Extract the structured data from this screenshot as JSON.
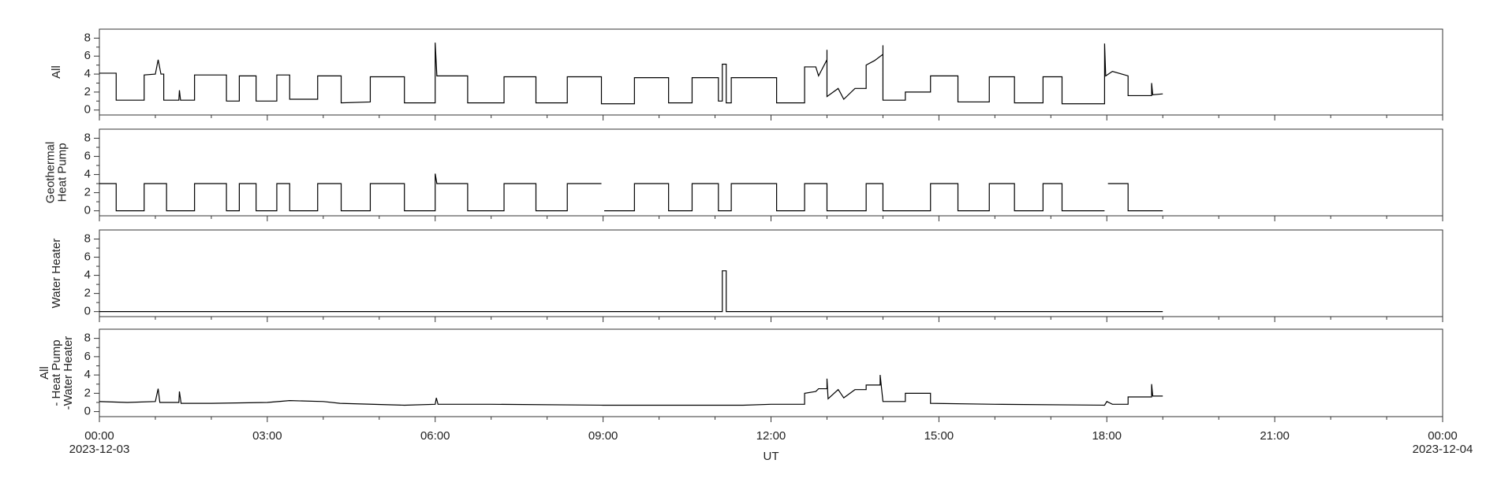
{
  "x_axis": {
    "label": "UT",
    "xlim": [
      0,
      24
    ],
    "xticks": [
      {
        "value": 0,
        "label": "00:00"
      },
      {
        "value": 3,
        "label": "03:00"
      },
      {
        "value": 6,
        "label": "06:00"
      },
      {
        "value": 9,
        "label": "09:00"
      },
      {
        "value": 12,
        "label": "12:00"
      },
      {
        "value": 15,
        "label": "15:00"
      },
      {
        "value": 18,
        "label": "18:00"
      },
      {
        "value": 21,
        "label": "21:00"
      },
      {
        "value": 24,
        "label": "00:00"
      }
    ],
    "xminorticks": [
      1,
      2,
      4,
      5,
      7,
      8,
      10,
      11,
      13,
      14,
      16,
      17,
      19,
      20,
      22,
      23
    ],
    "date_labels": [
      {
        "value": 0,
        "label": "2023-12-03"
      },
      {
        "value": 24,
        "label": "2023-12-04"
      }
    ]
  },
  "chart_data": [
    {
      "type": "line",
      "ylabel": [
        "All"
      ],
      "ylim": [
        -0.55,
        9
      ],
      "yticks": [
        0,
        2,
        4,
        6,
        8
      ],
      "yminorticks": [
        1,
        3,
        5,
        7
      ],
      "color": "#000000",
      "x": [
        0,
        0.3,
        0.3,
        0.8,
        0.8,
        1.0,
        1.05,
        1.1,
        1.15,
        1.15,
        1.42,
        1.43,
        1.45,
        1.7,
        1.7,
        2.27,
        2.27,
        2.5,
        2.5,
        2.8,
        2.8,
        3.17,
        3.17,
        3.4,
        3.4,
        3.9,
        3.9,
        4.32,
        4.32,
        4.84,
        4.84,
        5.45,
        5.45,
        6.0,
        6.0,
        6.03,
        6.58,
        6.58,
        7.23,
        7.23,
        7.8,
        7.8,
        8.36,
        8.36,
        8.97,
        8.97,
        9.56,
        9.56,
        10.17,
        10.17,
        10.59,
        10.59,
        11.06,
        11.06,
        11.13,
        11.13,
        11.2,
        11.2,
        11.29,
        11.29,
        12.1,
        12.1,
        12.6,
        12.6,
        12.8,
        12.85,
        13.0,
        13.0,
        13.0,
        13.2,
        13.3,
        13.5,
        13.7,
        13.7,
        13.85,
        14.0,
        14.0,
        14.0,
        14.4,
        14.4,
        14.85,
        14.85,
        15.34,
        15.34,
        15.9,
        15.9,
        16.35,
        16.35,
        16.86,
        16.86,
        17.2,
        17.2,
        17.96,
        17.96,
        17.98,
        18.1,
        18.38,
        18.38,
        18.8,
        18.8,
        18.82,
        19.0
      ],
      "values": [
        4.1,
        4.1,
        1.1,
        1.1,
        3.9,
        4.0,
        5.6,
        4.0,
        4.0,
        1.1,
        1.1,
        2.2,
        1.1,
        1.1,
        3.9,
        3.9,
        1.0,
        1.0,
        3.8,
        3.8,
        1.0,
        1.0,
        3.9,
        3.9,
        1.2,
        1.2,
        3.8,
        3.8,
        0.8,
        0.9,
        3.7,
        3.7,
        0.8,
        0.8,
        7.5,
        3.8,
        3.8,
        0.8,
        0.8,
        3.7,
        3.7,
        0.8,
        0.8,
        3.7,
        3.7,
        0.7,
        0.7,
        3.6,
        3.6,
        0.8,
        0.8,
        3.6,
        3.6,
        1.0,
        1.0,
        5.1,
        5.1,
        0.8,
        0.8,
        3.6,
        3.6,
        0.8,
        0.8,
        4.8,
        4.8,
        3.8,
        5.6,
        6.7,
        1.5,
        2.4,
        1.2,
        2.4,
        2.4,
        5.0,
        5.5,
        6.2,
        7.2,
        1.1,
        1.1,
        2.0,
        2.0,
        3.8,
        3.8,
        0.9,
        0.9,
        3.7,
        3.7,
        0.8,
        0.8,
        3.7,
        3.7,
        0.7,
        0.7,
        7.4,
        3.8,
        4.3,
        3.8,
        1.6,
        1.6,
        3.0,
        1.7,
        1.8
      ]
    },
    {
      "type": "line",
      "ylabel": [
        "Geothermal",
        "Heat Pump"
      ],
      "ylim": [
        -0.55,
        9
      ],
      "yticks": [
        0,
        2,
        4,
        6,
        8
      ],
      "yminorticks": [
        1,
        3,
        5,
        7
      ],
      "color": "#000000",
      "x": [
        0,
        0.3,
        0.3,
        0.8,
        0.8,
        1.2,
        1.2,
        1.7,
        1.7,
        2.27,
        2.27,
        2.5,
        2.5,
        2.8,
        2.8,
        3.17,
        3.17,
        3.4,
        3.4,
        3.9,
        3.9,
        4.32,
        4.32,
        4.84,
        4.84,
        5.45,
        5.45,
        6.0,
        6.0,
        6.03,
        6.58,
        6.58,
        7.23,
        7.23,
        7.8,
        7.8,
        8.36,
        8.36,
        8.97,
        9.0,
        9.02,
        9.56,
        9.56,
        10.17,
        10.17,
        10.59,
        10.59,
        11.06,
        11.06,
        11.29,
        11.29,
        12.1,
        12.1,
        12.6,
        12.6,
        13.0,
        13.0,
        13.7,
        13.7,
        14.0,
        14.0,
        14.85,
        14.85,
        15.34,
        15.34,
        15.9,
        15.9,
        16.35,
        16.35,
        16.86,
        16.86,
        17.2,
        17.2,
        17.96,
        17.98,
        18.02,
        18.38,
        18.38,
        19.0
      ],
      "values": [
        3.0,
        3.0,
        0.0,
        0.0,
        3.0,
        3.0,
        0.0,
        0.0,
        3.0,
        3.0,
        0.0,
        0.0,
        3.0,
        3.0,
        0.0,
        0.0,
        3.0,
        3.0,
        0.0,
        0.0,
        3.0,
        3.0,
        0.0,
        0.0,
        3.0,
        3.0,
        0.0,
        0.0,
        4.1,
        3.0,
        3.0,
        0.0,
        0.0,
        3.0,
        3.0,
        0.0,
        0.0,
        3.0,
        3.0,
        null,
        0.0,
        0.0,
        3.0,
        3.0,
        0.0,
        0.0,
        3.0,
        3.0,
        0.0,
        0.0,
        3.0,
        3.0,
        0.0,
        0.0,
        3.0,
        3.0,
        0.0,
        0.0,
        3.0,
        3.0,
        0.0,
        0.0,
        3.0,
        3.0,
        0.0,
        0.0,
        3.0,
        3.0,
        0.0,
        0.0,
        3.0,
        3.0,
        0.0,
        0.0,
        null,
        3.0,
        3.0,
        0.0,
        0.0
      ]
    },
    {
      "type": "line",
      "ylabel": [
        "Water Heater"
      ],
      "ylim": [
        -0.55,
        9
      ],
      "yticks": [
        0,
        2,
        4,
        6,
        8
      ],
      "yminorticks": [
        1,
        3,
        5,
        7
      ],
      "color": "#000000",
      "x": [
        0,
        11.13,
        11.13,
        11.2,
        11.2,
        19.0
      ],
      "values": [
        0,
        0,
        4.5,
        4.5,
        0,
        0
      ]
    },
    {
      "type": "line",
      "ylabel": [
        "All",
        "- Heat Pump",
        "-Water Heater"
      ],
      "ylim": [
        -0.55,
        9
      ],
      "yticks": [
        0,
        2,
        4,
        6,
        8
      ],
      "yminorticks": [
        1,
        3,
        5,
        7
      ],
      "color": "#000000",
      "x": [
        0,
        0.5,
        1.0,
        1.05,
        1.08,
        1.42,
        1.43,
        1.46,
        2.0,
        3.0,
        3.4,
        4.0,
        4.3,
        5.45,
        6.0,
        6.02,
        6.05,
        7.0,
        9.0,
        10.5,
        11.5,
        12.0,
        12.6,
        12.6,
        12.8,
        12.85,
        13.0,
        13.0,
        13.02,
        13.2,
        13.3,
        13.5,
        13.7,
        13.7,
        13.95,
        13.95,
        14.0,
        14.4,
        14.4,
        14.85,
        14.85,
        16.0,
        17.96,
        18.0,
        18.1,
        18.38,
        18.38,
        18.8,
        18.8,
        18.82,
        19.0
      ],
      "values": [
        1.1,
        1.0,
        1.1,
        2.5,
        1.0,
        1.0,
        2.2,
        0.9,
        0.9,
        1.0,
        1.2,
        1.1,
        0.9,
        0.7,
        0.8,
        1.5,
        0.8,
        0.8,
        0.7,
        0.7,
        0.7,
        0.8,
        0.8,
        2.0,
        2.2,
        2.5,
        2.5,
        3.6,
        1.4,
        2.4,
        1.5,
        2.4,
        2.4,
        2.9,
        2.9,
        4.0,
        1.1,
        1.1,
        2.0,
        2.0,
        0.9,
        0.8,
        0.7,
        1.1,
        0.8,
        0.8,
        1.6,
        1.6,
        3.0,
        1.7,
        1.7
      ]
    }
  ]
}
